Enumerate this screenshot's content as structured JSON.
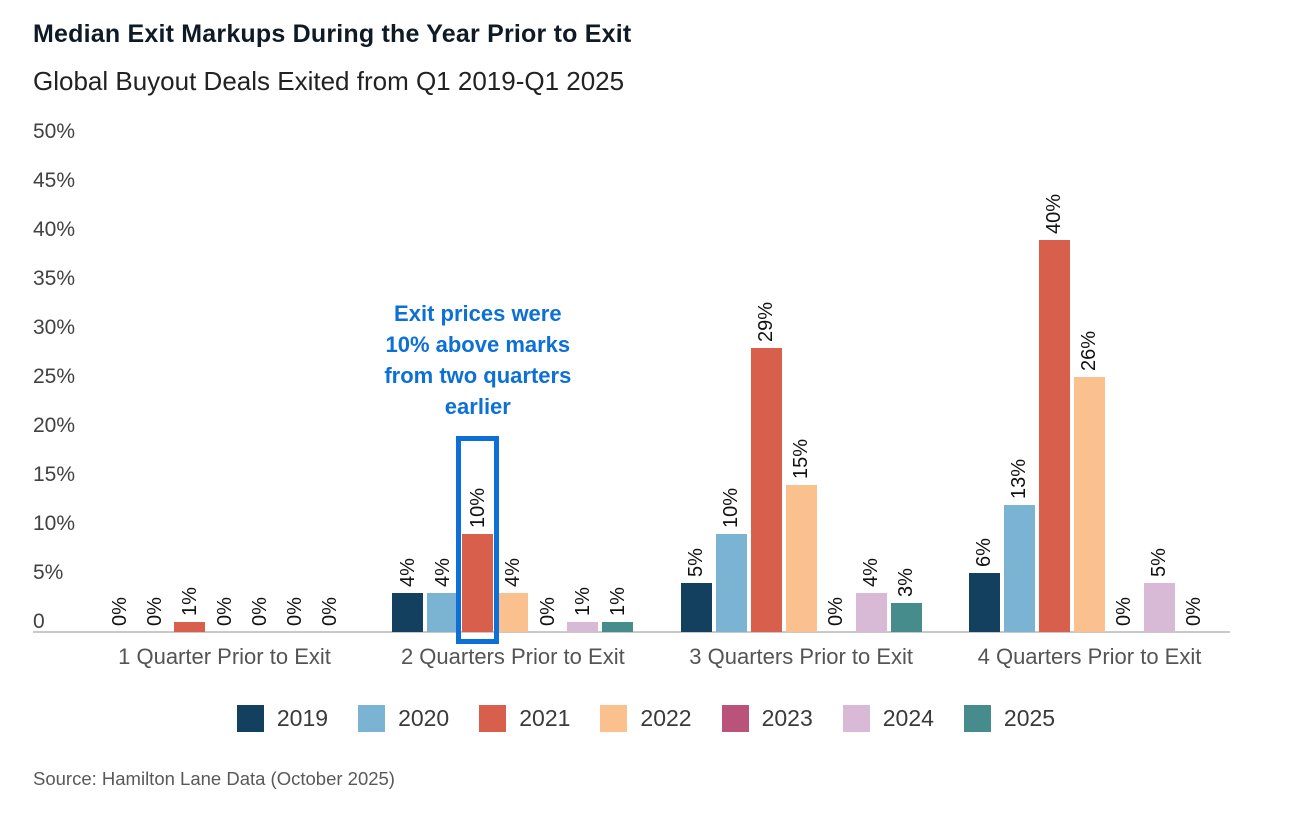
{
  "chart_data": {
    "type": "bar",
    "title": "Median Exit Markups During the Year Prior to Exit",
    "subtitle": "Global Buyout Deals Exited from Q1 2019-Q1 2025",
    "categories": [
      "1 Quarter Prior to Exit",
      "2 Quarters Prior to Exit",
      "3 Quarters Prior to Exit",
      "4 Quarters Prior to Exit"
    ],
    "series": [
      {
        "name": "2019",
        "color": "#12405E",
        "values": [
          0,
          4,
          5,
          6
        ]
      },
      {
        "name": "2020",
        "color": "#7BB3D2",
        "values": [
          0,
          4,
          10,
          13
        ]
      },
      {
        "name": "2021",
        "color": "#D75F4B",
        "values": [
          1,
          10,
          29,
          40
        ]
      },
      {
        "name": "2022",
        "color": "#FAC08E",
        "values": [
          0,
          4,
          15,
          26
        ]
      },
      {
        "name": "2023",
        "color": "#B9537A",
        "values": [
          0,
          0,
          0,
          0
        ]
      },
      {
        "name": "2024",
        "color": "#D9BAD6",
        "values": [
          0,
          1,
          4,
          5
        ]
      },
      {
        "name": "2025",
        "color": "#478C8C",
        "values": [
          0,
          1,
          3,
          0
        ]
      }
    ],
    "value_label_suffix": "%",
    "y_ticks": [
      {
        "label": "50%",
        "value": 50
      },
      {
        "label": "45%",
        "value": 45
      },
      {
        "label": "40%",
        "value": 40
      },
      {
        "label": "35%",
        "value": 35
      },
      {
        "label": "30%",
        "value": 30
      },
      {
        "label": "25%",
        "value": 25
      },
      {
        "label": "20%",
        "value": 20
      },
      {
        "label": "15%",
        "value": 15
      },
      {
        "label": "10%",
        "value": 10
      },
      {
        "label": "5%",
        "value": 5
      },
      {
        "label": "0",
        "value": 0
      }
    ],
    "ylim": [
      0,
      50
    ],
    "grid": false,
    "legend_position": "bottom",
    "annotation": {
      "text": "Exit prices were 10% above marks from two quarters earlier",
      "lines": [
        "Exit prices were",
        "10% above marks",
        "from two quarters",
        "earlier"
      ],
      "color": "#0C70D6",
      "highlight": {
        "category_index": 1,
        "series_index": 2,
        "box_top_value_percent": 20
      }
    },
    "source": "Source: Hamilton Lane Data (October 2025)",
    "axis_line_color": "#C9C9C9"
  }
}
